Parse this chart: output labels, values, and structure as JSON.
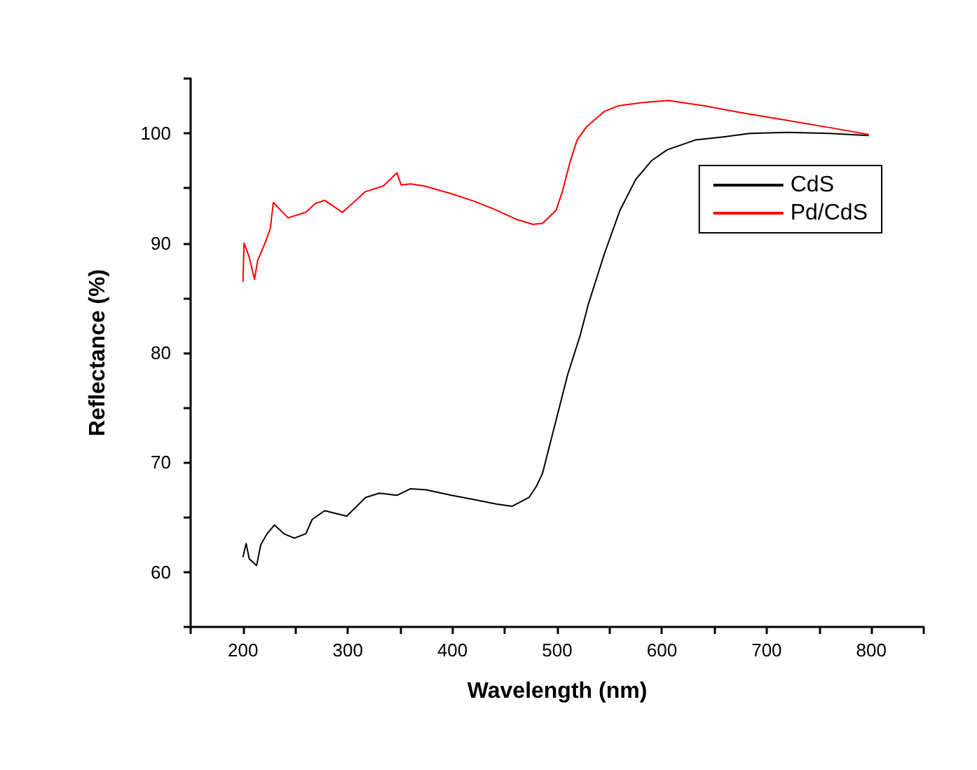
{
  "chart_data": {
    "type": "line",
    "xlabel": "Wavelength (nm)",
    "ylabel": "Reflectance (%)",
    "xlim": [
      150,
      850
    ],
    "ylim": [
      55,
      105
    ],
    "xticks": [
      {
        "value": 150,
        "label": null
      },
      200,
      {
        "value": 250,
        "label": null
      },
      300,
      {
        "value": 350,
        "label": null
      },
      400,
      {
        "value": 450,
        "label": null
      },
      500,
      {
        "value": 550,
        "label": null
      },
      600,
      {
        "value": 650,
        "label": null
      },
      700,
      {
        "value": 750,
        "label": null
      },
      800,
      {
        "value": 850,
        "label": null
      }
    ],
    "yticks": [
      {
        "value": 55,
        "label": null
      },
      60,
      {
        "value": 65,
        "label": null
      },
      70,
      {
        "value": 75,
        "label": null
      },
      80,
      {
        "value": 85,
        "label": null
      },
      90,
      {
        "value": 95,
        "label": null
      },
      100,
      {
        "value": 105,
        "label": null
      }
    ],
    "grid": false,
    "legend": "top right",
    "marker": "none",
    "line_style": "solid",
    "series": [
      {
        "name": "CdS",
        "color": "#000000",
        "x": [
          200,
          203,
          206,
          213,
          217,
          223,
          230,
          239,
          249,
          260,
          266,
          278,
          299,
          317,
          330,
          347,
          360,
          375,
          399,
          421,
          442,
          457,
          473,
          480,
          486,
          490,
          502,
          510,
          522,
          530,
          545,
          560,
          575,
          590,
          605,
          632,
          660,
          684,
          720,
          760,
          797
        ],
        "values": [
          61.4,
          62.6,
          61.2,
          60.6,
          62.5,
          63.5,
          64.3,
          63.5,
          63.1,
          63.5,
          64.8,
          65.6,
          65.1,
          66.8,
          67.2,
          67.0,
          67.6,
          67.5,
          67.0,
          66.6,
          66.2,
          66.0,
          66.8,
          67.8,
          69.0,
          70.5,
          75.0,
          78.0,
          81.6,
          84.5,
          89.0,
          93.0,
          95.8,
          97.5,
          98.5,
          99.4,
          99.7,
          100.0,
          100.1,
          100.0,
          99.8
        ]
      },
      {
        "name": "Pd/CdS",
        "color": "#ff0000",
        "x": [
          200,
          201,
          206,
          211,
          214,
          221,
          226,
          229,
          243,
          260,
          269,
          278,
          295,
          317,
          334,
          347,
          351,
          360,
          373,
          399,
          421,
          442,
          460,
          477,
          486,
          499,
          505,
          512,
          519,
          528,
          545,
          558,
          580,
          606,
          641,
          675,
          719,
          762,
          797
        ],
        "values": [
          86.5,
          90.0,
          88.7,
          86.7,
          88.4,
          90.0,
          91.3,
          93.7,
          92.3,
          92.8,
          93.6,
          93.9,
          92.8,
          94.7,
          95.2,
          96.4,
          95.3,
          95.4,
          95.2,
          94.5,
          93.8,
          93.0,
          92.2,
          91.7,
          91.8,
          93.0,
          94.7,
          97.3,
          99.4,
          100.6,
          102.0,
          102.5,
          102.8,
          103.0,
          102.5,
          101.9,
          101.2,
          100.5,
          99.9
        ]
      }
    ]
  }
}
